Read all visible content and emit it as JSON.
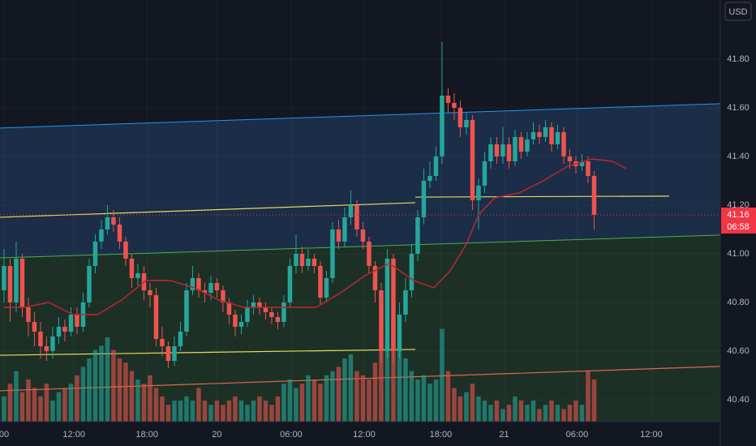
{
  "chart_data": {
    "type": "candlestick",
    "currency": "USD",
    "x": [
      0,
      0.5,
      1,
      1.5,
      2,
      2.5,
      3,
      3.5,
      4,
      4.5,
      5,
      5.5,
      6,
      6.5,
      7,
      7.5,
      8,
      8.5,
      9,
      9.5,
      10,
      10.5,
      11,
      11.5,
      12,
      12.5,
      13,
      13.5,
      14,
      14.5,
      15,
      15.5,
      16,
      16.5,
      17,
      17.5,
      18,
      18.5,
      19,
      19.5,
      20,
      20.5,
      21,
      21.5,
      22,
      22.5,
      23,
      23.5,
      24,
      24.5,
      25,
      25.5,
      26,
      26.5,
      27,
      27.5,
      28,
      28.5,
      29,
      29.5,
      30,
      30.5,
      31,
      31.5,
      32,
      32.5,
      33,
      33.5,
      34,
      34.5,
      35,
      35.5,
      36,
      36.5,
      37,
      37.5,
      38,
      38.5,
      39,
      39.5,
      40,
      40.5,
      41,
      41.5,
      42,
      42.5,
      43,
      43.5,
      44,
      44.5,
      45,
      45.5,
      46,
      46.5,
      47,
      47.5,
      48,
      48.5
    ],
    "open": [
      40.85,
      40.95,
      40.8,
      40.98,
      40.78,
      40.72,
      40.68,
      40.62,
      40.6,
      40.66,
      40.7,
      40.68,
      40.75,
      40.7,
      40.8,
      40.95,
      41.05,
      41.1,
      41.15,
      41.12,
      41.05,
      40.98,
      40.9,
      40.92,
      40.85,
      40.83,
      40.65,
      40.62,
      40.56,
      40.62,
      40.68,
      40.85,
      40.9,
      40.85,
      40.84,
      40.88,
      40.85,
      40.8,
      40.75,
      40.7,
      40.72,
      40.78,
      40.8,
      40.78,
      40.76,
      40.74,
      40.72,
      40.8,
      40.95,
      41.0,
      40.95,
      40.98,
      40.95,
      40.82,
      40.9,
      41.1,
      41.05,
      41.15,
      41.2,
      41.1,
      41.05,
      40.95,
      40.85,
      40.6,
      40.98,
      40.6,
      40.75,
      40.85,
      41.0,
      41.15,
      41.3,
      41.32,
      41.4,
      41.65,
      41.62,
      41.6,
      41.52,
      41.55,
      41.22,
      41.28,
      41.38,
      41.45,
      41.4,
      41.45,
      41.38,
      41.48,
      41.42,
      41.47,
      41.5,
      41.48,
      41.52,
      41.45,
      41.5,
      41.4,
      41.38,
      41.36,
      41.38,
      41.32
    ],
    "high": [
      41.02,
      40.98,
      41.05,
      41.0,
      40.82,
      40.76,
      40.72,
      40.66,
      40.7,
      40.74,
      40.73,
      40.78,
      40.78,
      40.84,
      40.98,
      41.08,
      41.14,
      41.2,
      41.18,
      41.15,
      41.07,
      41.0,
      40.96,
      40.95,
      40.88,
      40.86,
      40.7,
      40.64,
      40.66,
      40.72,
      40.88,
      40.95,
      40.92,
      40.88,
      40.91,
      40.9,
      40.87,
      40.82,
      40.77,
      40.75,
      40.81,
      40.83,
      40.82,
      40.8,
      40.78,
      40.76,
      40.83,
      40.98,
      41.08,
      41.03,
      41.02,
      41.0,
      40.97,
      40.93,
      41.13,
      41.14,
      41.19,
      41.26,
      41.22,
      41.13,
      41.07,
      40.97,
      40.88,
      41.02,
      41.0,
      40.8,
      40.9,
      41.04,
      41.18,
      41.35,
      41.38,
      41.44,
      41.87,
      41.68,
      41.66,
      41.63,
      41.58,
      41.57,
      41.31,
      41.42,
      41.48,
      41.48,
      41.52,
      41.48,
      41.51,
      41.5,
      41.5,
      41.54,
      41.53,
      41.55,
      41.54,
      41.53,
      41.52,
      41.43,
      41.4,
      41.41,
      41.4,
      41.34
    ],
    "low": [
      40.8,
      40.72,
      40.76,
      40.74,
      40.66,
      40.62,
      40.57,
      40.56,
      40.57,
      40.63,
      40.64,
      40.66,
      40.67,
      40.68,
      40.78,
      40.92,
      41.02,
      41.08,
      41.09,
      41.02,
      40.95,
      40.86,
      40.87,
      40.81,
      40.78,
      40.62,
      40.58,
      40.53,
      40.54,
      40.6,
      40.66,
      40.83,
      40.82,
      40.8,
      40.81,
      40.82,
      40.76,
      40.71,
      40.66,
      40.67,
      40.7,
      40.75,
      40.75,
      40.73,
      40.71,
      40.69,
      40.7,
      40.78,
      40.92,
      40.92,
      40.93,
      40.92,
      40.79,
      40.8,
      40.88,
      41.02,
      41.03,
      41.12,
      41.07,
      41.02,
      40.92,
      40.8,
      40.55,
      40.57,
      40.55,
      40.57,
      40.72,
      40.82,
      40.97,
      41.12,
      41.27,
      41.3,
      41.37,
      41.58,
      41.55,
      41.48,
      41.49,
      41.18,
      41.1,
      41.25,
      41.35,
      41.37,
      41.37,
      41.35,
      41.36,
      41.39,
      41.4,
      41.45,
      41.45,
      41.46,
      41.42,
      41.43,
      41.37,
      41.35,
      41.33,
      41.34,
      41.29,
      41.1
    ],
    "close": [
      40.95,
      40.8,
      40.98,
      40.78,
      40.72,
      40.68,
      40.62,
      40.6,
      40.66,
      40.7,
      40.68,
      40.75,
      40.7,
      40.8,
      40.95,
      41.05,
      41.1,
      41.15,
      41.12,
      41.05,
      40.98,
      40.9,
      40.92,
      40.85,
      40.83,
      40.65,
      40.62,
      40.56,
      40.62,
      40.68,
      40.85,
      40.9,
      40.85,
      40.84,
      40.88,
      40.85,
      40.8,
      40.75,
      40.7,
      40.72,
      40.78,
      40.8,
      40.78,
      40.76,
      40.74,
      40.72,
      40.8,
      40.95,
      41.0,
      40.95,
      40.98,
      40.95,
      40.82,
      40.9,
      41.1,
      41.05,
      41.15,
      41.2,
      41.1,
      41.05,
      40.95,
      40.85,
      40.6,
      40.98,
      40.6,
      40.75,
      40.85,
      41.0,
      41.15,
      41.3,
      41.32,
      41.4,
      41.65,
      41.62,
      41.6,
      41.52,
      41.55,
      41.22,
      41.28,
      41.38,
      41.45,
      41.4,
      41.45,
      41.38,
      41.48,
      41.42,
      41.47,
      41.5,
      41.48,
      41.52,
      41.45,
      41.5,
      41.4,
      41.38,
      41.36,
      41.38,
      41.32,
      41.16
    ],
    "volume": [
      6,
      9,
      12,
      7,
      10,
      8,
      6,
      9,
      5,
      7,
      8,
      9,
      11,
      13,
      15,
      17,
      18,
      20,
      17,
      15,
      14,
      12,
      10,
      9,
      11,
      8,
      6,
      4,
      5,
      5,
      6,
      5,
      8,
      5,
      4,
      5,
      4,
      5,
      6,
      5,
      4,
      5,
      6,
      5,
      4,
      6,
      9,
      10,
      8,
      9,
      11,
      10,
      9,
      11,
      12,
      13,
      15,
      16,
      12,
      11,
      10,
      14,
      22,
      19,
      24,
      17,
      15,
      12,
      10,
      11,
      9,
      10,
      22,
      12,
      8,
      6,
      7,
      9,
      6,
      5,
      4,
      5,
      3,
      4,
      6,
      5,
      4,
      5,
      3,
      4,
      5,
      4,
      3,
      4,
      5,
      4,
      12,
      10
    ],
    "vlim": [
      0,
      100
    ],
    "up_color": "#26a69a",
    "down_color": "#ef5350",
    "ma": {
      "color": "#b22833",
      "x": [
        0,
        1.67,
        3.67,
        5.67,
        7.67,
        9.67,
        11.67,
        13.67,
        15.67,
        17.67,
        19.67,
        21.67,
        23.67,
        25.67,
        27.67,
        29.67,
        31.67,
        33.67,
        35.33,
        36.67,
        38,
        39,
        40.33,
        42.33,
        44.33,
        46.33,
        48.33,
        50,
        51.13
      ],
      "values": [
        40.78,
        40.78,
        40.8,
        40.75,
        40.75,
        40.81,
        40.89,
        40.89,
        40.86,
        40.81,
        40.78,
        40.78,
        40.78,
        40.78,
        40.84,
        40.91,
        40.96,
        40.89,
        40.86,
        40.93,
        41.04,
        41.16,
        41.23,
        41.25,
        41.3,
        41.36,
        41.39,
        41.38,
        41.35
      ]
    },
    "channel": {
      "upper": {
        "x": [
          -0.33,
          58.87
        ],
        "values": [
          41.517,
          41.617
        ],
        "color": "#2196f3",
        "fill": "#1b2d47"
      },
      "middle": {
        "x": [
          -0.33,
          58.87
        ],
        "values": [
          40.983,
          41.077
        ],
        "color": "#4caf50",
        "fill": "#1c3026"
      }
    },
    "lines": [
      {
        "x": [
          -0.33,
          33.8
        ],
        "values": [
          41.15,
          41.21
        ],
        "color": "#e8dc5c"
      },
      {
        "x": [
          -0.33,
          33.8
        ],
        "values": [
          40.583,
          40.607
        ],
        "color": "#e8dc5c"
      },
      {
        "x": [
          33.8,
          54.67
        ],
        "values": [
          41.233,
          41.237
        ],
        "color": "#e8dc5c"
      },
      {
        "x": [
          -0.33,
          58.87
        ],
        "values": [
          40.437,
          40.537
        ],
        "color": "#e0664a"
      }
    ],
    "last": {
      "value": 41.16,
      "time": "06:58",
      "color": "#f23645"
    },
    "xlim": [
      -0.33,
      58.87
    ],
    "ylim": [
      40.31,
      42.043
    ],
    "xticks": [
      {
        "value": 0,
        "label": "00"
      },
      {
        "value": 5.75,
        "label": "12:00"
      },
      {
        "value": 11.75,
        "label": "18:00"
      },
      {
        "value": 17.5,
        "label": "20"
      },
      {
        "value": 23.6,
        "label": "06:00"
      },
      {
        "value": 29.6,
        "label": "12:00"
      },
      {
        "value": 35.9,
        "label": "18:00"
      },
      {
        "value": 41.1,
        "label": "21"
      },
      {
        "value": 47.1,
        "label": "06:00"
      },
      {
        "value": 53.2,
        "label": "12:00"
      }
    ],
    "yticks": [
      {
        "value": 40.4,
        "label": "40.40"
      },
      {
        "value": 40.6,
        "label": "40.60"
      },
      {
        "value": 40.8,
        "label": "40.80"
      },
      {
        "value": 41.0,
        "label": "41.00"
      },
      {
        "value": 41.2,
        "label": "41.20"
      },
      {
        "value": 41.4,
        "label": "41.40"
      },
      {
        "value": 41.6,
        "label": "41.60"
      },
      {
        "value": 41.8,
        "label": "41.80"
      }
    ]
  }
}
